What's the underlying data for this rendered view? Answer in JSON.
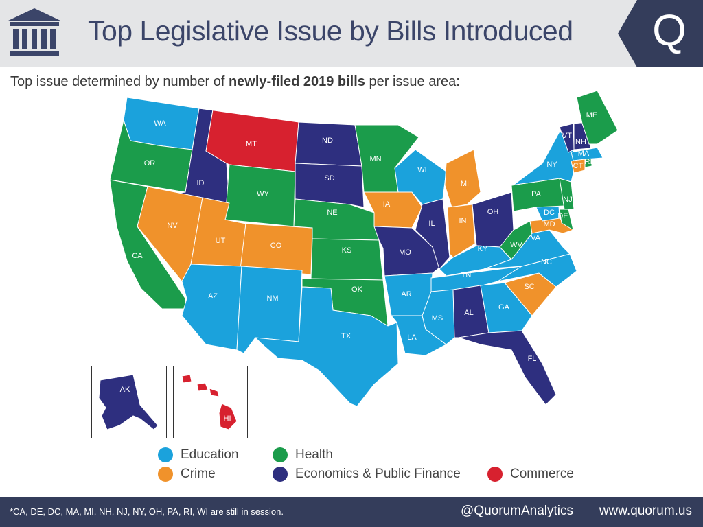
{
  "header": {
    "title": "Top Legislative Issue by Bills Introduced",
    "subtitle_pre": "Top issue determined by number of ",
    "subtitle_bold": "newly-filed 2019 bills",
    "subtitle_post": " per issue area:"
  },
  "colors": {
    "Education": "#1ba2dc",
    "Health": "#1b9c4b",
    "Crime": "#f0922b",
    "Economics & Public Finance": "#2e2f7f",
    "Commerce": "#d7212f"
  },
  "legend": [
    {
      "label": "Education",
      "category": "Education"
    },
    {
      "label": "Health",
      "category": "Health"
    },
    {
      "label": "Crime",
      "category": "Crime"
    },
    {
      "label": "Economics & Public Finance",
      "category": "Economics & Public Finance"
    },
    {
      "label": "Commerce",
      "category": "Commerce"
    }
  ],
  "states": {
    "WA": "Education",
    "OR": "Health",
    "CA": "Health",
    "ID": "Economics & Public Finance",
    "NV": "Crime",
    "MT": "Commerce",
    "WY": "Health",
    "UT": "Crime",
    "CO": "Crime",
    "AZ": "Education",
    "NM": "Education",
    "ND": "Economics & Public Finance",
    "SD": "Economics & Public Finance",
    "NE": "Health",
    "KS": "Health",
    "OK": "Health",
    "TX": "Education",
    "MN": "Health",
    "IA": "Crime",
    "MO": "Economics & Public Finance",
    "AR": "Education",
    "LA": "Education",
    "WI": "Education",
    "IL": "Economics & Public Finance",
    "MI": "Crime",
    "IN": "Crime",
    "OH": "Economics & Public Finance",
    "KY": "Education",
    "TN": "Education",
    "MS": "Education",
    "AL": "Economics & Public Finance",
    "GA": "Education",
    "FL": "Economics & Public Finance",
    "SC": "Crime",
    "NC": "Education",
    "VA": "Education",
    "WV": "Health",
    "MD": "Crime",
    "DE": "Health",
    "DC": "Education",
    "PA": "Health",
    "NJ": "Health",
    "NY": "Education",
    "CT": "Crime",
    "RI": "Health",
    "MA": "Education",
    "VT": "Economics & Public Finance",
    "NH": "Economics & Public Finance",
    "ME": "Health",
    "AK": "Economics & Public Finance",
    "HI": "Commerce"
  },
  "footer": {
    "note": "*CA, DE, DC, MA, MI, NH, NJ, NY, OH, PA, RI, WI are still in session.",
    "handle": "@QuorumAnalytics",
    "url": "www.quorum.us"
  },
  "brand_letter": "Q"
}
